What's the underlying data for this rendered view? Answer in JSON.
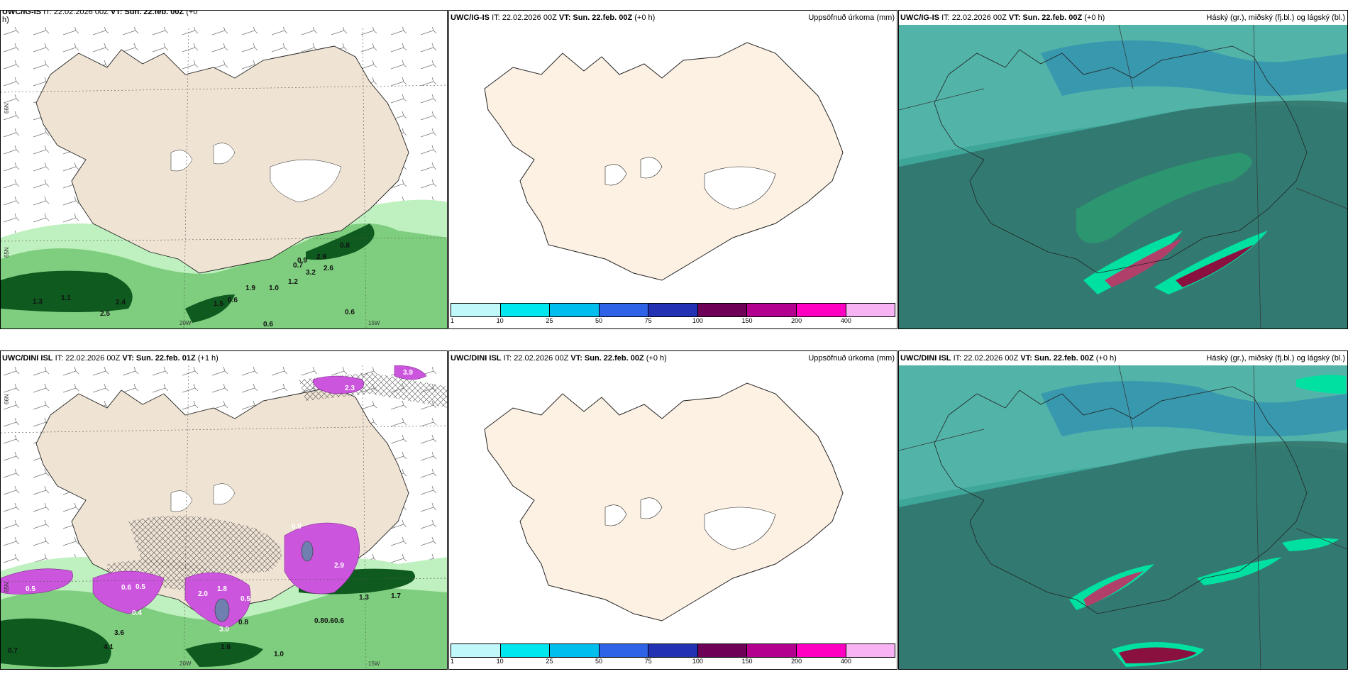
{
  "panels": [
    {
      "id": "p1",
      "source": "UWC/IG-IS",
      "it": "IT: 22.02.2026 00Z",
      "vt_label": "VT:",
      "vt": "Sun. 22.feb. 00Z",
      "offset": "(+0",
      "offset_wrap": "h)",
      "right_title": ""
    },
    {
      "id": "p2",
      "source": "UWC/IG-IS",
      "it": "IT: 22.02.2026 00Z",
      "vt_label": "VT:",
      "vt": "Sun. 22.feb. 00Z",
      "offset": "(+0 h)",
      "right_title": "Uppsöfnuð úrkoma (mm)"
    },
    {
      "id": "p3",
      "source": "UWC/IG-IS",
      "it": "IT: 22.02.2026 00Z",
      "vt_label": "VT:",
      "vt": "Sun. 22.feb. 00Z",
      "offset": "(+0 h)",
      "right_title": "Háský (gr.), miðský (fj.bl.) og lágský (bl.)"
    },
    {
      "id": "p4",
      "source": "UWC/DINI ISL",
      "it": "IT: 22.02.2026 00Z",
      "vt_label": "VT:",
      "vt": "Sun. 22.feb. 01Z",
      "offset": "(+1 h)",
      "right_title": ""
    },
    {
      "id": "p5",
      "source": "UWC/DINI ISL",
      "it": "IT: 22.02.2026 00Z",
      "vt_label": "VT:",
      "vt": "Sun. 22.feb. 00Z",
      "offset": "(+0 h)",
      "right_title": "Uppsöfnuð úrkoma (mm)"
    },
    {
      "id": "p6",
      "source": "UWC/DINI ISL",
      "it": "IT: 22.02.2026 00Z",
      "vt_label": "VT:",
      "vt": "Sun. 22.feb. 00Z",
      "offset": "(+0 h)",
      "right_title": "Háský (gr.), miðský (fj.bl.) og lágský (bl.)"
    }
  ],
  "axis_labels": {
    "lat66": "66N",
    "lat65": "65N",
    "lon20": "20W",
    "lon15": "15W"
  },
  "legend": {
    "colors": [
      "#bff7fb",
      "#00e7ef",
      "#00bfef",
      "#2f63e7",
      "#2331b3",
      "#6f0057",
      "#b3008f",
      "#ff00c3",
      "#f7b3f3"
    ],
    "ticks": [
      "1",
      "10",
      "25",
      "50",
      "75",
      "100",
      "150",
      "200",
      "400"
    ]
  },
  "precip_labels_top": [
    "1.3",
    "1.1",
    "2.5",
    "2.4",
    "0.6",
    "1.5",
    "1.9",
    "1.0",
    "0.9",
    "0.7",
    "3.2",
    "2.6",
    "2.9",
    "0.8",
    "0.6",
    "0.6",
    "1.2"
  ],
  "precip_labels_bottom": [
    "0.5",
    "0.7",
    "4.1",
    "3.6",
    "0.4",
    "0.6",
    "0.5",
    "2.0",
    "1.8",
    "0.5",
    "3.0",
    "0.8",
    "1.6",
    "1.0",
    "0.8",
    "0.6",
    "0.6",
    "2.9",
    "1.3",
    "1.7",
    "2.3",
    "3.9",
    "0.8"
  ],
  "colors": {
    "land": "#efe3d4",
    "land_light": "#fdf1e4",
    "coast": "#222222",
    "green_light": "#bff0bf",
    "green_mid": "#6cc46c",
    "green_dark": "#0e5a1f",
    "magenta": "#cc55dd",
    "teal": "#3fa69a",
    "teal_dark": "#2f6b63"
  }
}
